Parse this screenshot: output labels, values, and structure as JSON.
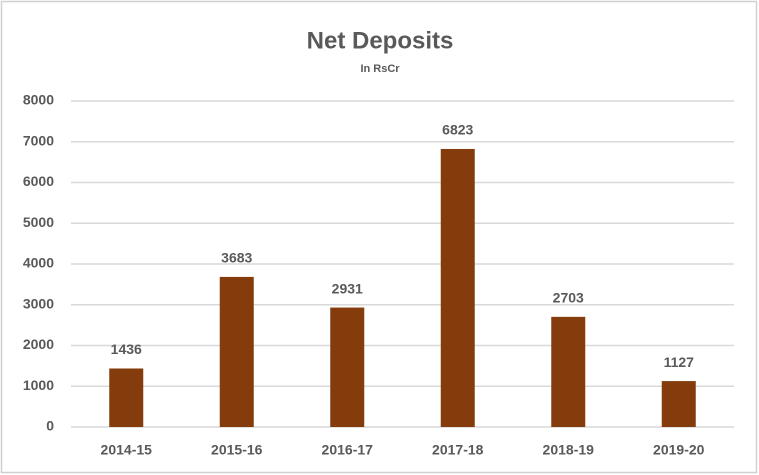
{
  "chart_data": {
    "type": "bar",
    "title": "Net Deposits",
    "subtitle": "In RsCr",
    "categories": [
      "2014-15",
      "2015-16",
      "2016-17",
      "2017-18",
      "2018-19",
      "2019-20"
    ],
    "values": [
      1436,
      3683,
      2931,
      6823,
      2703,
      1127
    ],
    "color": "#843c0c",
    "ylim": [
      0,
      8000
    ],
    "yticks": [
      0,
      1000,
      2000,
      3000,
      4000,
      5000,
      6000,
      7000,
      8000
    ],
    "grid": true
  }
}
